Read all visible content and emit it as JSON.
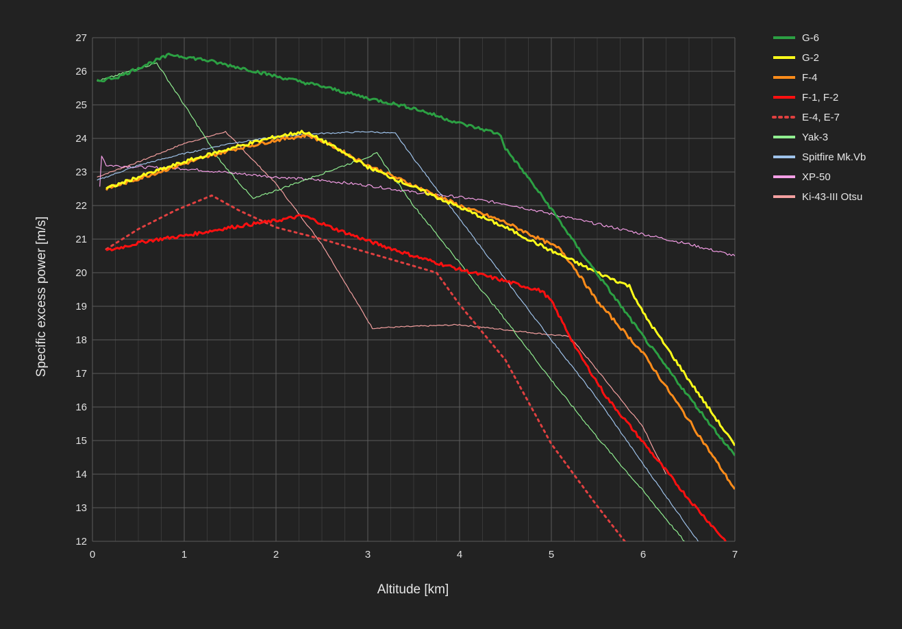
{
  "chart_data": {
    "type": "line",
    "xlabel": "Altitude [km]",
    "ylabel": "Specific excess power [m/s]",
    "xlim": [
      0,
      7
    ],
    "ylim": [
      12,
      27
    ],
    "xticks": [
      0,
      1,
      2,
      3,
      4,
      5,
      6,
      7
    ],
    "yticks": [
      12,
      13,
      14,
      15,
      16,
      17,
      18,
      19,
      20,
      21,
      22,
      23,
      24,
      25,
      26,
      27
    ],
    "grid": true,
    "legend_position": "right",
    "series": [
      {
        "name": "G-6",
        "color": "#2ca043",
        "width": 3,
        "dash": "",
        "noise": 0.05,
        "points": [
          [
            0.05,
            25.7
          ],
          [
            0.3,
            25.85
          ],
          [
            0.5,
            26.1
          ],
          [
            0.85,
            26.5
          ],
          [
            1.2,
            26.35
          ],
          [
            1.7,
            26.05
          ],
          [
            2.0,
            25.85
          ],
          [
            2.5,
            25.55
          ],
          [
            3.0,
            25.2
          ],
          [
            3.5,
            24.9
          ],
          [
            4.0,
            24.45
          ],
          [
            4.35,
            24.2
          ],
          [
            4.45,
            24.1
          ],
          [
            4.5,
            23.7
          ],
          [
            4.7,
            23.0
          ],
          [
            5.0,
            21.9
          ],
          [
            5.3,
            20.7
          ],
          [
            5.6,
            19.6
          ],
          [
            6.0,
            18.1
          ],
          [
            6.5,
            16.3
          ],
          [
            7.0,
            14.55
          ]
        ]
      },
      {
        "name": "G-2",
        "color": "#ffff1a",
        "width": 3,
        "dash": "",
        "noise": 0.05,
        "points": [
          [
            0.15,
            22.5
          ],
          [
            0.5,
            22.85
          ],
          [
            1.0,
            23.3
          ],
          [
            1.5,
            23.7
          ],
          [
            2.0,
            24.05
          ],
          [
            2.3,
            24.2
          ],
          [
            2.5,
            23.95
          ],
          [
            3.0,
            23.15
          ],
          [
            3.5,
            22.55
          ],
          [
            4.0,
            21.95
          ],
          [
            4.5,
            21.35
          ],
          [
            5.0,
            20.65
          ],
          [
            5.2,
            20.4
          ],
          [
            5.5,
            20.0
          ],
          [
            5.85,
            19.6
          ],
          [
            6.0,
            18.8
          ],
          [
            6.5,
            16.8
          ],
          [
            7.0,
            14.85
          ]
        ]
      },
      {
        "name": "F-4",
        "color": "#ff8c1a",
        "width": 3,
        "dash": "",
        "noise": 0.05,
        "points": [
          [
            0.15,
            22.5
          ],
          [
            0.5,
            22.8
          ],
          [
            1.0,
            23.25
          ],
          [
            1.5,
            23.65
          ],
          [
            2.0,
            23.95
          ],
          [
            2.35,
            24.1
          ],
          [
            2.6,
            23.8
          ],
          [
            3.0,
            23.2
          ],
          [
            3.5,
            22.6
          ],
          [
            4.0,
            22.0
          ],
          [
            4.5,
            21.5
          ],
          [
            4.95,
            20.9
          ],
          [
            5.1,
            20.7
          ],
          [
            5.25,
            20.15
          ],
          [
            5.5,
            19.15
          ],
          [
            6.0,
            17.6
          ],
          [
            6.5,
            15.6
          ],
          [
            7.0,
            13.55
          ]
        ]
      },
      {
        "name": "F-1, F-2",
        "color": "#ff1010",
        "width": 3,
        "dash": "",
        "noise": 0.05,
        "points": [
          [
            0.15,
            20.65
          ],
          [
            0.6,
            20.95
          ],
          [
            1.0,
            21.1
          ],
          [
            1.5,
            21.35
          ],
          [
            2.0,
            21.55
          ],
          [
            2.3,
            21.7
          ],
          [
            2.6,
            21.35
          ],
          [
            3.0,
            20.95
          ],
          [
            3.5,
            20.5
          ],
          [
            4.0,
            20.1
          ],
          [
            4.5,
            19.75
          ],
          [
            4.9,
            19.45
          ],
          [
            5.0,
            19.15
          ],
          [
            5.3,
            17.6
          ],
          [
            5.6,
            16.3
          ],
          [
            6.0,
            14.95
          ],
          [
            6.5,
            13.25
          ],
          [
            6.9,
            12.0
          ]
        ]
      },
      {
        "name": "E-4, E-7",
        "color": "#e04040",
        "width": 3,
        "dash": "3 6",
        "noise": 0.0,
        "points": [
          [
            0.15,
            20.7
          ],
          [
            0.5,
            21.3
          ],
          [
            0.9,
            21.85
          ],
          [
            1.3,
            22.3
          ],
          [
            1.6,
            21.85
          ],
          [
            2.0,
            21.35
          ],
          [
            2.5,
            21.0
          ],
          [
            3.0,
            20.6
          ],
          [
            3.5,
            20.2
          ],
          [
            3.75,
            20.0
          ],
          [
            4.0,
            19.05
          ],
          [
            4.5,
            17.4
          ],
          [
            5.0,
            14.9
          ],
          [
            5.5,
            13.05
          ],
          [
            5.8,
            12.0
          ]
        ]
      },
      {
        "name": "Yak-3",
        "color": "#90ee90",
        "width": 1.2,
        "dash": "",
        "noise": 0.03,
        "points": [
          [
            0.05,
            25.7
          ],
          [
            0.35,
            25.95
          ],
          [
            0.7,
            26.25
          ],
          [
            1.0,
            25.0
          ],
          [
            1.4,
            23.3
          ],
          [
            1.75,
            22.2
          ],
          [
            2.0,
            22.45
          ],
          [
            2.5,
            22.95
          ],
          [
            3.1,
            23.55
          ],
          [
            3.5,
            22.0
          ],
          [
            4.0,
            20.3
          ],
          [
            4.5,
            18.6
          ],
          [
            5.0,
            16.8
          ],
          [
            5.5,
            15.1
          ],
          [
            6.0,
            13.5
          ],
          [
            6.45,
            12.0
          ]
        ]
      },
      {
        "name": "Spitfire Mk.Vb",
        "color": "#9ec2ea",
        "width": 1.2,
        "dash": "",
        "noise": 0.02,
        "points": [
          [
            0.05,
            22.75
          ],
          [
            0.5,
            23.2
          ],
          [
            1.0,
            23.55
          ],
          [
            1.5,
            23.85
          ],
          [
            2.0,
            24.05
          ],
          [
            2.5,
            24.15
          ],
          [
            3.0,
            24.2
          ],
          [
            3.3,
            24.15
          ],
          [
            3.5,
            23.4
          ],
          [
            4.0,
            21.6
          ],
          [
            4.5,
            19.8
          ],
          [
            5.0,
            18.0
          ],
          [
            5.5,
            16.25
          ],
          [
            6.0,
            14.3
          ],
          [
            6.6,
            12.0
          ]
        ]
      },
      {
        "name": "XP-50",
        "color": "#f49ee6",
        "width": 1.2,
        "dash": "",
        "noise": 0.04,
        "points": [
          [
            0.08,
            22.6
          ],
          [
            0.1,
            23.5
          ],
          [
            0.15,
            23.2
          ],
          [
            0.5,
            23.15
          ],
          [
            1.0,
            23.1
          ],
          [
            2.0,
            22.85
          ],
          [
            2.5,
            22.75
          ],
          [
            3.0,
            22.6
          ],
          [
            3.5,
            22.4
          ],
          [
            4.0,
            22.25
          ],
          [
            4.5,
            22.05
          ],
          [
            5.0,
            21.75
          ],
          [
            5.5,
            21.45
          ],
          [
            6.0,
            21.15
          ],
          [
            6.5,
            20.85
          ],
          [
            7.0,
            20.5
          ]
        ]
      },
      {
        "name": "Ki-43-III Otsu",
        "color": "#f4a0a0",
        "width": 1.2,
        "dash": "",
        "noise": 0.02,
        "points": [
          [
            0.05,
            22.85
          ],
          [
            0.5,
            23.3
          ],
          [
            1.0,
            23.85
          ],
          [
            1.45,
            24.2
          ],
          [
            2.0,
            22.65
          ],
          [
            2.5,
            20.85
          ],
          [
            3.05,
            18.35
          ],
          [
            3.5,
            18.4
          ],
          [
            4.0,
            18.45
          ],
          [
            4.5,
            18.3
          ],
          [
            5.0,
            18.15
          ],
          [
            5.2,
            18.1
          ],
          [
            5.5,
            17.1
          ],
          [
            6.0,
            15.4
          ],
          [
            6.25,
            14.0
          ]
        ]
      }
    ]
  }
}
